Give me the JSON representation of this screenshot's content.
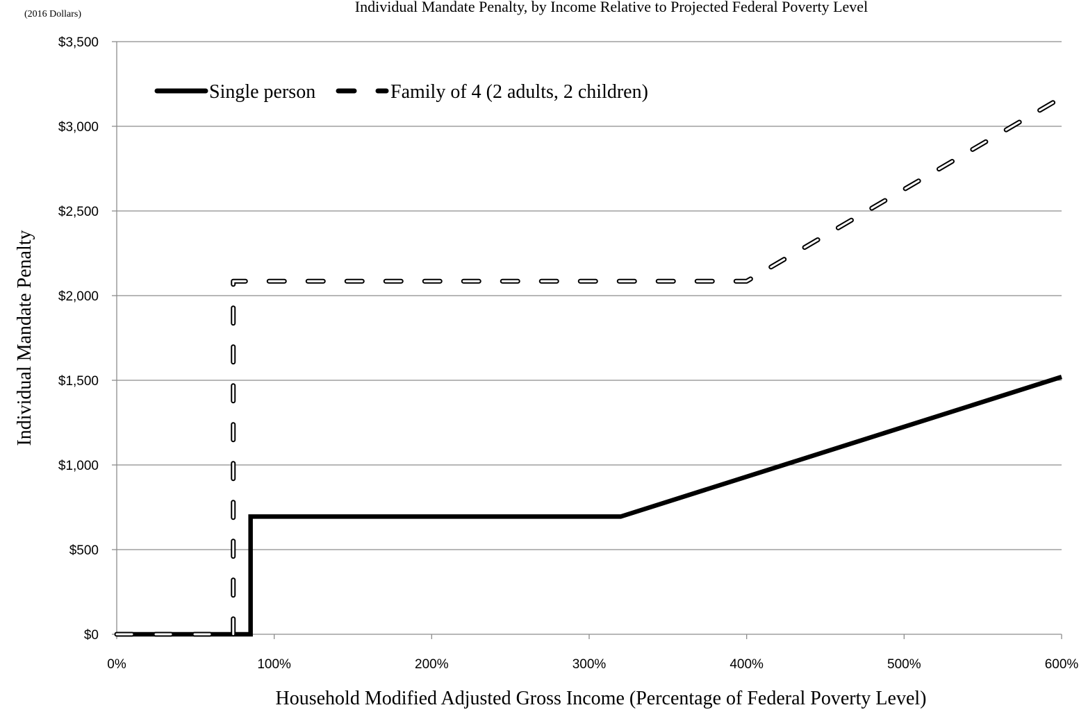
{
  "chart_data": {
    "type": "line",
    "title": "Individual Mandate Penalty, by Income Relative to Projected Federal Poverty Level",
    "units_note": "(2016 Dollars)",
    "xlabel": "Household Modified Adjusted Gross Income (Percentage of Federal Poverty Level)",
    "ylabel": "Individual Mandate Penalty",
    "xlim": [
      0,
      600
    ],
    "ylim": [
      0,
      3500
    ],
    "x_ticks": [
      0,
      100,
      200,
      300,
      400,
      500,
      600
    ],
    "x_tick_labels": [
      "0%",
      "100%",
      "200%",
      "300%",
      "400%",
      "500%",
      "600%"
    ],
    "y_ticks": [
      0,
      500,
      1000,
      1500,
      2000,
      2500,
      3000,
      3500
    ],
    "y_tick_labels": [
      "$0",
      "$500",
      "$1,000",
      "$1,500",
      "$2,000",
      "$2,500",
      "$3,000",
      "$3,500"
    ],
    "grid": "horizontal",
    "legend_position": "top-left",
    "series": [
      {
        "name": "Single person",
        "style": "solid",
        "color": "#000000",
        "points": [
          [
            0,
            0
          ],
          [
            85,
            0
          ],
          [
            85,
            695
          ],
          [
            320,
            695
          ],
          [
            600,
            1520
          ]
        ]
      },
      {
        "name": "Family of 4 (2 adults, 2 children)",
        "style": "dashed",
        "color": "#000000",
        "points": [
          [
            0,
            0
          ],
          [
            74,
            0
          ],
          [
            74,
            2085
          ],
          [
            400,
            2085
          ],
          [
            600,
            3170
          ]
        ]
      }
    ]
  }
}
